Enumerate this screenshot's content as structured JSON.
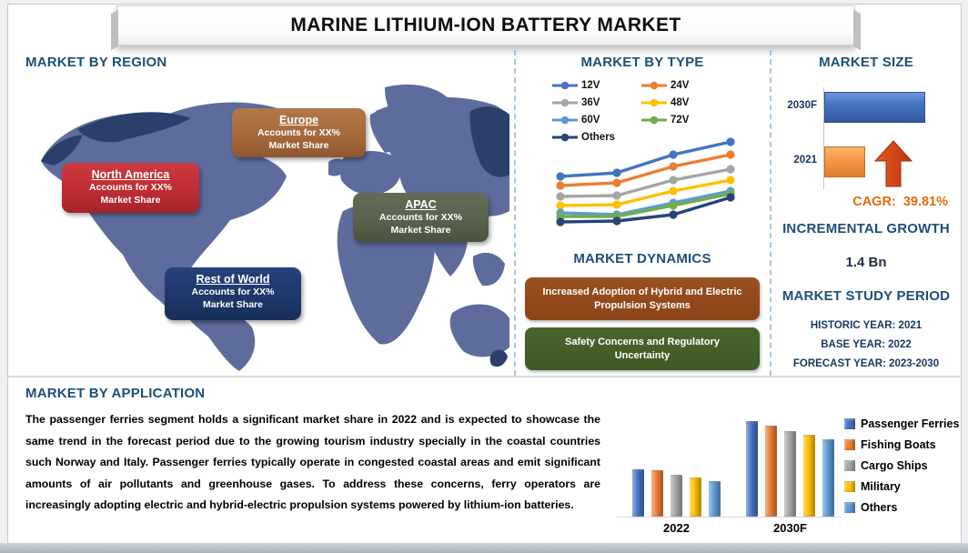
{
  "title": "MARINE LITHIUM-ION BATTERY MARKET",
  "colors": {
    "heading_blue": "#1F4E79",
    "cagr_orange": "#E36C09",
    "map_land": "#5D6C9C",
    "map_land_dark": "#2C3E6B",
    "separator_dashed": "#A9C7E6",
    "region_europe": "#A5693C",
    "region_north_america": "#BE2D32",
    "region_apac": "#59624C",
    "region_rest_of_world": "#1F3869",
    "dynamics_box1": "#8C4317",
    "dynamics_box2": "#3F5A26"
  },
  "region_section": {
    "heading": "MARKET BY REGION",
    "items": [
      {
        "name": "Europe",
        "line1": "Accounts for XX%",
        "line2": "Market Share"
      },
      {
        "name": "North America",
        "line1": "Accounts for XX%",
        "line2": "Market Share"
      },
      {
        "name": "APAC",
        "line1": "Accounts for XX%",
        "line2": "Market Share"
      },
      {
        "name": "Rest of World",
        "line1": "Accounts for XX%",
        "line2": "Market Share"
      }
    ]
  },
  "type_section": {
    "heading": "MARKET BY TYPE"
  },
  "dynamics_section": {
    "heading": "MARKET DYNAMICS",
    "items": [
      {
        "text": "Increased Adoption of Hybrid and Electric Propulsion Systems"
      },
      {
        "text": "Safety Concerns and Regulatory Uncertainty"
      }
    ]
  },
  "size_section": {
    "heading": "MARKET SIZE",
    "cagr_label": "CAGR:",
    "cagr_value": "39.81%"
  },
  "growth_section": {
    "heading": "INCREMENTAL GROWTH",
    "value": "1.4 Bn"
  },
  "study_period_section": {
    "heading": "MARKET STUDY PERIOD",
    "lines": [
      "HISTORIC YEAR: 2021",
      "BASE YEAR: 2022",
      "FORECAST YEAR: 2023-2030"
    ]
  },
  "application_section": {
    "heading": "MARKET BY APPLICATION",
    "paragraph": "The passenger ferries segment holds a significant market share in 2022 and is expected to showcase the same trend in the forecast period due to the growing tourism industry specially in the coastal countries such Norway and Italy. Passenger ferries typically operate in congested coastal areas and emit significant amounts of air pollutants and greenhouse gases. To address these concerns, ferry operators are increasingly adopting electric and hybrid-electric propulsion systems powered by lithium-ion batteries."
  },
  "chart_data": [
    {
      "id": "market-by-type-trend",
      "type": "line",
      "title": "MARKET BY TYPE",
      "x": [
        1,
        2,
        3,
        4
      ],
      "xlabel": "",
      "ylabel": "",
      "axes_labeled": false,
      "legend_position": "top",
      "series": [
        {
          "name": "12V",
          "color": "#4472C4",
          "values": [
            58,
            62,
            82,
            96
          ]
        },
        {
          "name": "24V",
          "color": "#ED7D31",
          "values": [
            48,
            51,
            69,
            82
          ]
        },
        {
          "name": "36V",
          "color": "#A5A5A5",
          "values": [
            36,
            37,
            54,
            66
          ]
        },
        {
          "name": "48V",
          "color": "#FFC000",
          "values": [
            26,
            27,
            42,
            54
          ]
        },
        {
          "name": "60V",
          "color": "#5B9BD5",
          "values": [
            18,
            16,
            29,
            42
          ]
        },
        {
          "name": "72V",
          "color": "#70AD47",
          "values": [
            14,
            14,
            26,
            39
          ]
        },
        {
          "name": "Others",
          "color": "#264478",
          "values": [
            8,
            9,
            16,
            35
          ]
        }
      ]
    },
    {
      "id": "market-size",
      "type": "bar",
      "orientation": "horizontal",
      "title": "MARKET SIZE",
      "categories": [
        "2030F",
        "2021"
      ],
      "values": [
        100,
        39
      ],
      "colors": [
        "#4472C4",
        "#F79646"
      ],
      "annotation": "CAGR: 39.81%",
      "axes_labeled": false
    },
    {
      "id": "market-by-application",
      "type": "bar",
      "title": "MARKET BY APPLICATION",
      "categories": [
        "2022",
        "2030F"
      ],
      "legend_position": "right",
      "axes_labeled": false,
      "series": [
        {
          "name": "Passenger Ferries",
          "color": "#4472C4",
          "values": [
            50,
            100
          ]
        },
        {
          "name": "Fishing Boats",
          "color": "#ED7D31",
          "values": [
            49,
            95
          ]
        },
        {
          "name": "Cargo Ships",
          "color": "#A5A5A5",
          "values": [
            44,
            90
          ]
        },
        {
          "name": "Military",
          "color": "#FFC000",
          "values": [
            41,
            86
          ]
        },
        {
          "name": "Others",
          "color": "#5B9BD5",
          "values": [
            37,
            81
          ]
        }
      ]
    }
  ]
}
